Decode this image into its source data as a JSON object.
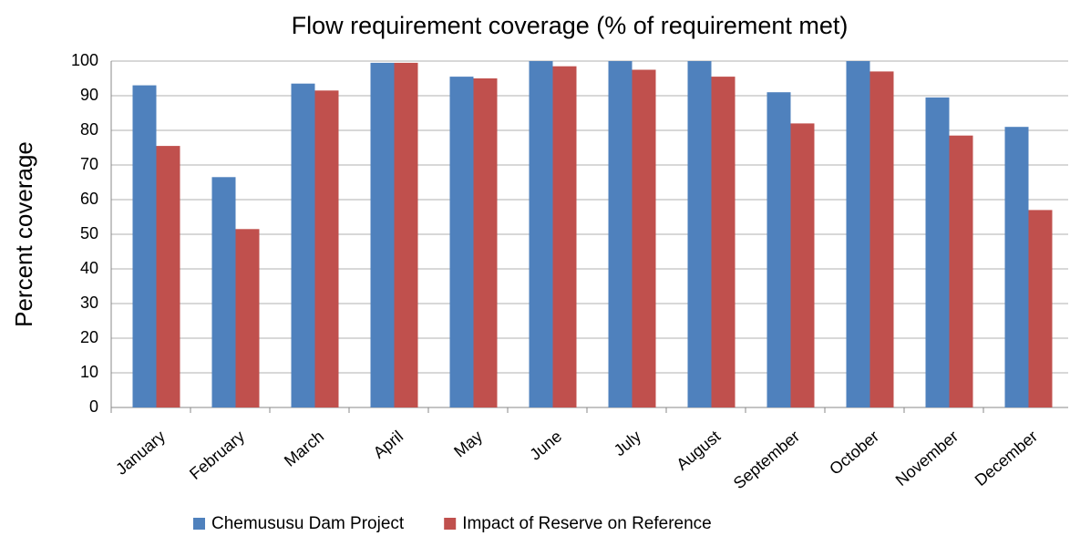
{
  "chart_data": {
    "type": "bar",
    "title": "Flow requirement coverage (% of requirement met)",
    "y_label": "Percent coverage",
    "categories": [
      "January",
      "February",
      "March",
      "April",
      "May",
      "June",
      "July",
      "August",
      "September",
      "October",
      "November",
      "December"
    ],
    "series": [
      {
        "name": "Chemususu Dam Project",
        "color": "#4f81bd",
        "values": [
          93,
          66.5,
          93.5,
          99.5,
          95.5,
          100,
          100,
          100,
          91,
          100,
          89.5,
          81
        ]
      },
      {
        "name": "Impact of Reserve on Reference",
        "color": "#c0504d",
        "values": [
          75.5,
          51.5,
          91.5,
          99.5,
          95,
          98.5,
          97.5,
          95.5,
          82,
          97,
          78.5,
          57
        ]
      }
    ],
    "ylim": [
      0,
      100
    ],
    "yticks": [
      0,
      10,
      20,
      30,
      40,
      50,
      60,
      70,
      80,
      90,
      100
    ],
    "grid": true,
    "legend": "bottom"
  }
}
